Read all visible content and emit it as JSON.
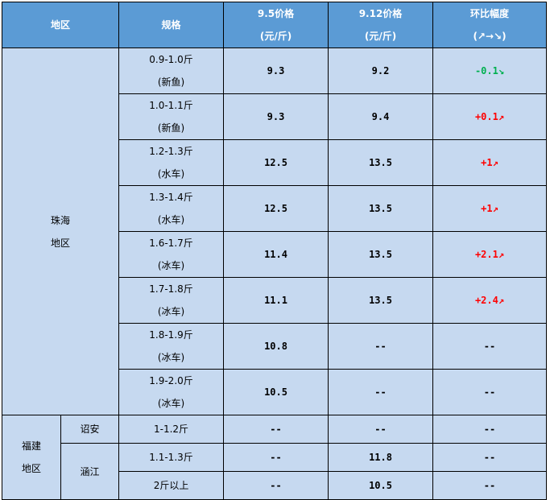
{
  "header": {
    "region": "地区",
    "spec": "规格",
    "price1": [
      "9.5价格",
      "(元/斤)"
    ],
    "price2": [
      "9.12价格",
      "(元/斤)"
    ],
    "change": [
      "环比幅度",
      "(↗→↘)"
    ]
  },
  "colors": {
    "header_bg": "#5b9bd5",
    "body_bg": "#c6d9f0",
    "up": "#ff0000",
    "down": "#00b050"
  },
  "zhuhai": {
    "region": [
      "珠海",
      "地区"
    ],
    "rows": [
      {
        "spec": [
          "0.9-1.0斤",
          "(新鱼)"
        ],
        "p1": "9.3",
        "p2": "9.2",
        "change": "-0.1↘",
        "dir": "down"
      },
      {
        "spec": [
          "1.0-1.1斤",
          "(新鱼)"
        ],
        "p1": "9.3",
        "p2": "9.4",
        "change": "+0.1↗",
        "dir": "up"
      },
      {
        "spec": [
          "1.2-1.3斤",
          "(水车)"
        ],
        "p1": "12.5",
        "p2": "13.5",
        "change": "+1↗",
        "dir": "up"
      },
      {
        "spec": [
          "1.3-1.4斤",
          "(水车)"
        ],
        "p1": "12.5",
        "p2": "13.5",
        "change": "+1↗",
        "dir": "up"
      },
      {
        "spec": [
          "1.6-1.7斤",
          "(冰车)"
        ],
        "p1": "11.4",
        "p2": "13.5",
        "change": "+2.1↗",
        "dir": "up"
      },
      {
        "spec": [
          "1.7-1.8斤",
          "(冰车)"
        ],
        "p1": "11.1",
        "p2": "13.5",
        "change": "+2.4↗",
        "dir": "up"
      },
      {
        "spec": [
          "1.8-1.9斤",
          "(冰车)"
        ],
        "p1": "10.8",
        "p2": "--",
        "change": "--",
        "dir": "none"
      },
      {
        "spec": [
          "1.9-2.0斤",
          "(冰车)"
        ],
        "p1": "10.5",
        "p2": "--",
        "change": "--",
        "dir": "none"
      }
    ]
  },
  "fujian": {
    "region": [
      "福建",
      "地区"
    ],
    "zhaoan": {
      "name": "诏安",
      "spec": "1-1.2斤",
      "p1": "--",
      "p2": "--",
      "change": "--"
    },
    "hanjiang": {
      "name": "涵江",
      "rows": [
        {
          "spec": "1.1-1.3斤",
          "p1": "--",
          "p2": "11.8",
          "change": "--"
        },
        {
          "spec": "2斤以上",
          "p1": "--",
          "p2": "10.5",
          "change": "--"
        }
      ]
    }
  }
}
